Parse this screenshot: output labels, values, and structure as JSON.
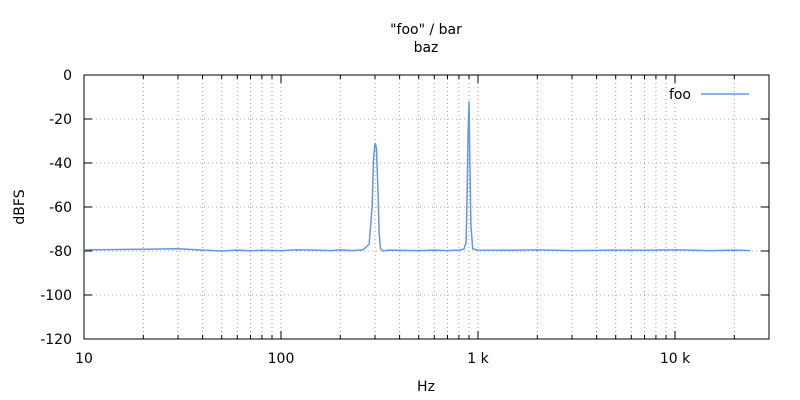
{
  "chart_data": {
    "type": "line",
    "title": "\"foo\" / bar",
    "subtitle": "baz",
    "xlabel": "Hz",
    "ylabel": "dBFS",
    "xscale": "log",
    "xlim": [
      10,
      30000
    ],
    "ylim": [
      -120,
      0
    ],
    "x_ticks": [
      {
        "value": 10,
        "label": "10"
      },
      {
        "value": 100,
        "label": "100"
      },
      {
        "value": 1000,
        "label": "1 k"
      },
      {
        "value": 10000,
        "label": "10 k"
      }
    ],
    "y_ticks": [
      {
        "value": 0,
        "label": "0"
      },
      {
        "value": -20,
        "label": "-20"
      },
      {
        "value": -40,
        "label": "-40"
      },
      {
        "value": -60,
        "label": "-60"
      },
      {
        "value": -80,
        "label": "-80"
      },
      {
        "value": -100,
        "label": "-100"
      },
      {
        "value": -120,
        "label": "-120"
      }
    ],
    "grid": true,
    "legend": "top-right",
    "series": [
      {
        "name": "foo",
        "color": "#6495ed",
        "x": [
          10,
          15,
          20,
          30,
          40,
          50,
          60,
          70,
          80,
          100,
          120,
          150,
          180,
          200,
          230,
          260,
          280,
          290,
          295,
          300,
          305,
          310,
          315,
          320,
          330,
          350,
          400,
          500,
          600,
          700,
          800,
          850,
          870,
          880,
          890,
          900,
          910,
          920,
          940,
          1000,
          1500,
          2000,
          3000,
          5000,
          7000,
          10000,
          15000,
          20000,
          24000
        ],
        "y": [
          -79.5,
          -79.3,
          -79.2,
          -79.0,
          -79.6,
          -80.0,
          -79.6,
          -79.9,
          -79.7,
          -79.8,
          -79.5,
          -79.6,
          -79.8,
          -79.5,
          -79.8,
          -79.5,
          -77,
          -60,
          -38,
          -31,
          -33,
          -50,
          -72,
          -79,
          -80,
          -79.6,
          -79.7,
          -79.8,
          -79.6,
          -79.8,
          -79.6,
          -79,
          -76,
          -55,
          -28,
          -12,
          -40,
          -68,
          -79,
          -79.6,
          -79.7,
          -79.5,
          -79.8,
          -79.6,
          -79.7,
          -79.5,
          -79.8,
          -79.6,
          -79.8
        ]
      }
    ]
  }
}
